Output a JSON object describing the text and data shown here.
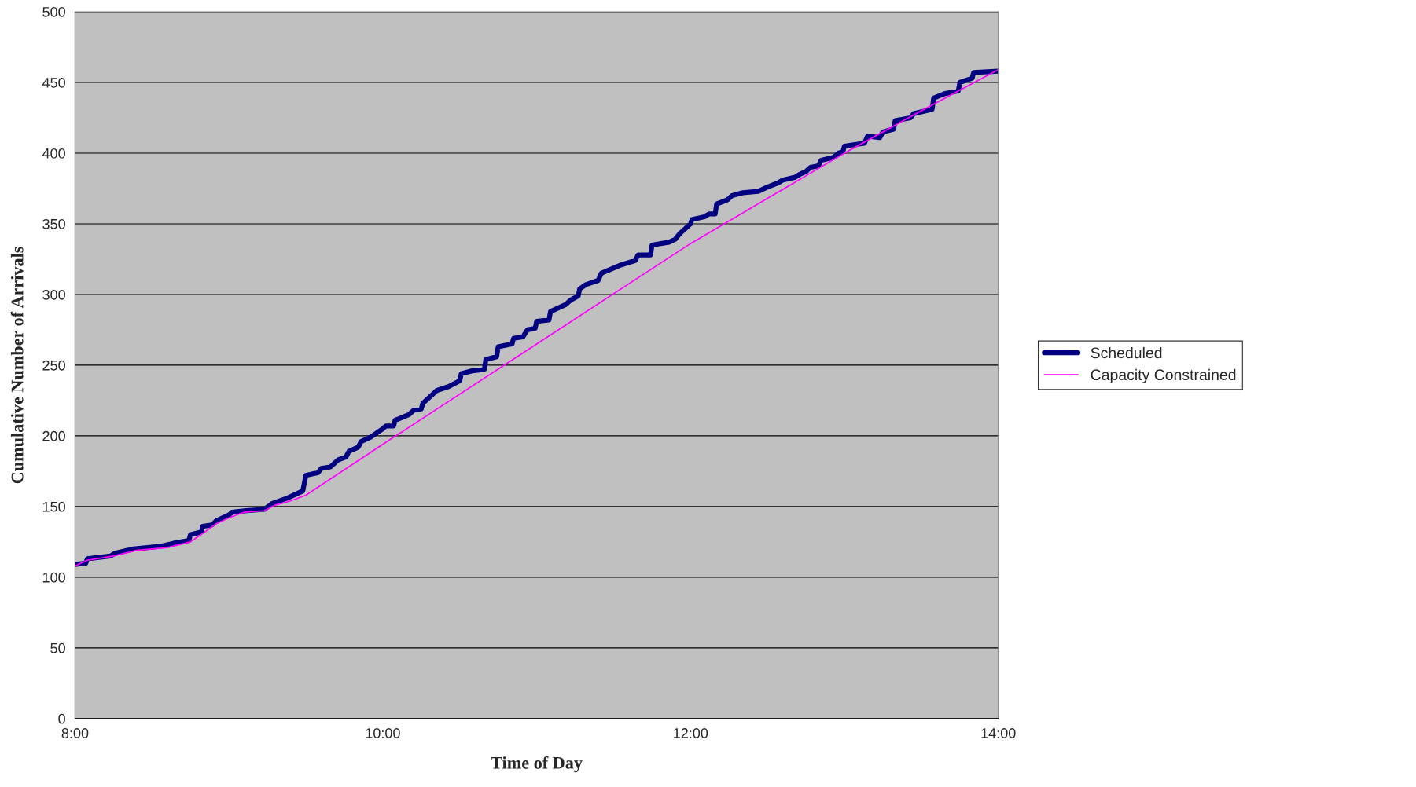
{
  "chart_data": {
    "type": "line",
    "xlabel": "Time of Day",
    "ylabel": "Cumulative Number of Arrivals",
    "xlim": [
      8,
      14
    ],
    "xticks": [
      {
        "value": 8,
        "label": "8:00"
      },
      {
        "value": 10,
        "label": "10:00"
      },
      {
        "value": 12,
        "label": "12:00"
      },
      {
        "value": 14,
        "label": "14:00"
      }
    ],
    "ylim": [
      0,
      500
    ],
    "yticks": [
      0,
      50,
      100,
      150,
      200,
      250,
      300,
      350,
      400,
      450,
      500
    ],
    "grid": "y",
    "legend": "right",
    "marker": "none",
    "line_style": "solid",
    "series": [
      {
        "name": "Scheduled",
        "color": "#000080",
        "x": [
          8.0,
          8.07,
          8.08,
          8.23,
          8.26,
          8.38,
          8.56,
          8.64,
          8.74,
          8.75,
          8.82,
          8.83,
          8.89,
          8.92,
          9.0,
          9.02,
          9.1,
          9.23,
          9.28,
          9.38,
          9.48,
          9.5,
          9.58,
          9.6,
          9.66,
          9.71,
          9.76,
          9.78,
          9.84,
          9.86,
          9.92,
          10.0,
          10.02,
          10.07,
          10.08,
          10.17,
          10.2,
          10.25,
          10.26,
          10.32,
          10.35,
          10.43,
          10.5,
          10.51,
          10.58,
          10.66,
          10.67,
          10.74,
          10.75,
          10.84,
          10.85,
          10.91,
          10.94,
          10.99,
          11.0,
          11.08,
          11.09,
          11.19,
          11.22,
          11.27,
          11.28,
          11.32,
          11.4,
          11.42,
          11.55,
          11.64,
          11.66,
          11.74,
          11.75,
          11.86,
          11.9,
          11.93,
          12.0,
          12.01,
          12.09,
          12.12,
          12.16,
          12.17,
          12.24,
          12.27,
          12.34,
          12.44,
          12.5,
          12.57,
          12.6,
          12.68,
          12.71,
          12.75,
          12.78,
          12.83,
          12.85,
          12.93,
          12.96,
          12.99,
          13.0,
          13.13,
          13.15,
          13.23,
          13.25,
          13.32,
          13.33,
          13.43,
          13.45,
          13.57,
          13.58,
          13.65,
          13.74,
          13.75,
          13.83,
          13.84,
          14.0
        ],
        "values": [
          109,
          110,
          113,
          115,
          117,
          120,
          122,
          124,
          126,
          130,
          132,
          136,
          137,
          140,
          144,
          146,
          147,
          148,
          152,
          156,
          161,
          172,
          174,
          177,
          178,
          183,
          185,
          189,
          192,
          196,
          199,
          205,
          207,
          207,
          211,
          215,
          218,
          219,
          223,
          229,
          232,
          235,
          239,
          244,
          246,
          247,
          254,
          256,
          263,
          265,
          269,
          270,
          275,
          276,
          281,
          282,
          288,
          293,
          296,
          299,
          304,
          307,
          310,
          315,
          321,
          324,
          328,
          328,
          335,
          337,
          339,
          343,
          350,
          353,
          355,
          357,
          357,
          364,
          367,
          370,
          372,
          373,
          376,
          379,
          381,
          383,
          385,
          387,
          390,
          391,
          395,
          397,
          400,
          401,
          405,
          407,
          412,
          411,
          415,
          417,
          423,
          425,
          428,
          431,
          439,
          442,
          444,
          450,
          453,
          457,
          458
        ]
      },
      {
        "name": "Capacity Constrained",
        "color": "#ff00ff",
        "x": [
          8.0,
          8.08,
          8.25,
          8.4,
          8.6,
          8.75,
          8.83,
          8.92,
          9.0,
          9.1,
          9.23,
          9.3,
          9.4,
          9.5,
          10.0,
          11.0,
          12.0,
          12.5,
          13.0,
          13.5,
          14.0
        ],
        "values": [
          108,
          112,
          115,
          119,
          121,
          125,
          131,
          138,
          142,
          146,
          147,
          151,
          154,
          158,
          194,
          265,
          336,
          368,
          400,
          430,
          459
        ]
      }
    ]
  }
}
